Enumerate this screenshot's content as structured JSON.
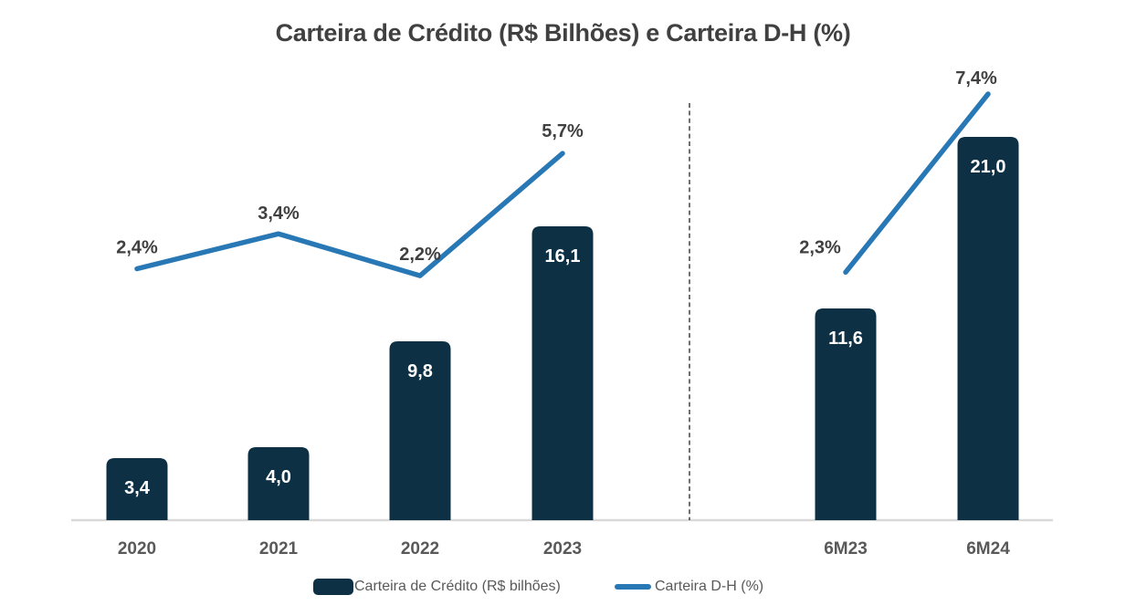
{
  "title": "Carteira de Crédito (R$ Bilhões) e Carteira D-H (%)",
  "legend": {
    "bar_label": "Carteira de Crédito (R$ bilhões)",
    "line_label": "Carteira D-H (%)"
  },
  "colors": {
    "bar": "#0e3044",
    "line": "#2878b5",
    "title_text": "#404040",
    "pct_label_text": "#404040",
    "x_label_text": "#595959",
    "bar_value_text": "#ffffff",
    "legend_text": "#595959",
    "baseline": "#d9d9d9",
    "separator": "#333333"
  },
  "chart_data": {
    "type": "combo",
    "categories": [
      "2020",
      "2021",
      "2022",
      "2023",
      "6M23",
      "6M24"
    ],
    "series": [
      {
        "name": "Carteira de Crédito (R$ bilhões)",
        "type": "bar",
        "values": [
          3.4,
          4.0,
          9.8,
          16.1,
          11.6,
          21.0
        ],
        "labels": [
          "3,4",
          "4,0",
          "9,8",
          "16,1",
          "11,6",
          "21,0"
        ]
      },
      {
        "name": "Carteira D-H (%)",
        "type": "line",
        "values": [
          2.4,
          3.4,
          2.2,
          5.7,
          2.3,
          7.4
        ],
        "labels": [
          "2,4%",
          "3,4%",
          "2,2%",
          "5,7%",
          "2,3%",
          "7,4%"
        ]
      }
    ],
    "line_groups": [
      [
        0,
        1,
        2,
        3
      ],
      [
        4,
        5
      ]
    ],
    "separator_between": [
      "2023",
      "6M23"
    ],
    "bar_ylim": [
      0,
      22.8
    ],
    "line_ylim": [
      0,
      8.5
    ],
    "grid": false,
    "legend_position": "bottom",
    "value_labels_visible": true,
    "y_axis_visible": false
  }
}
